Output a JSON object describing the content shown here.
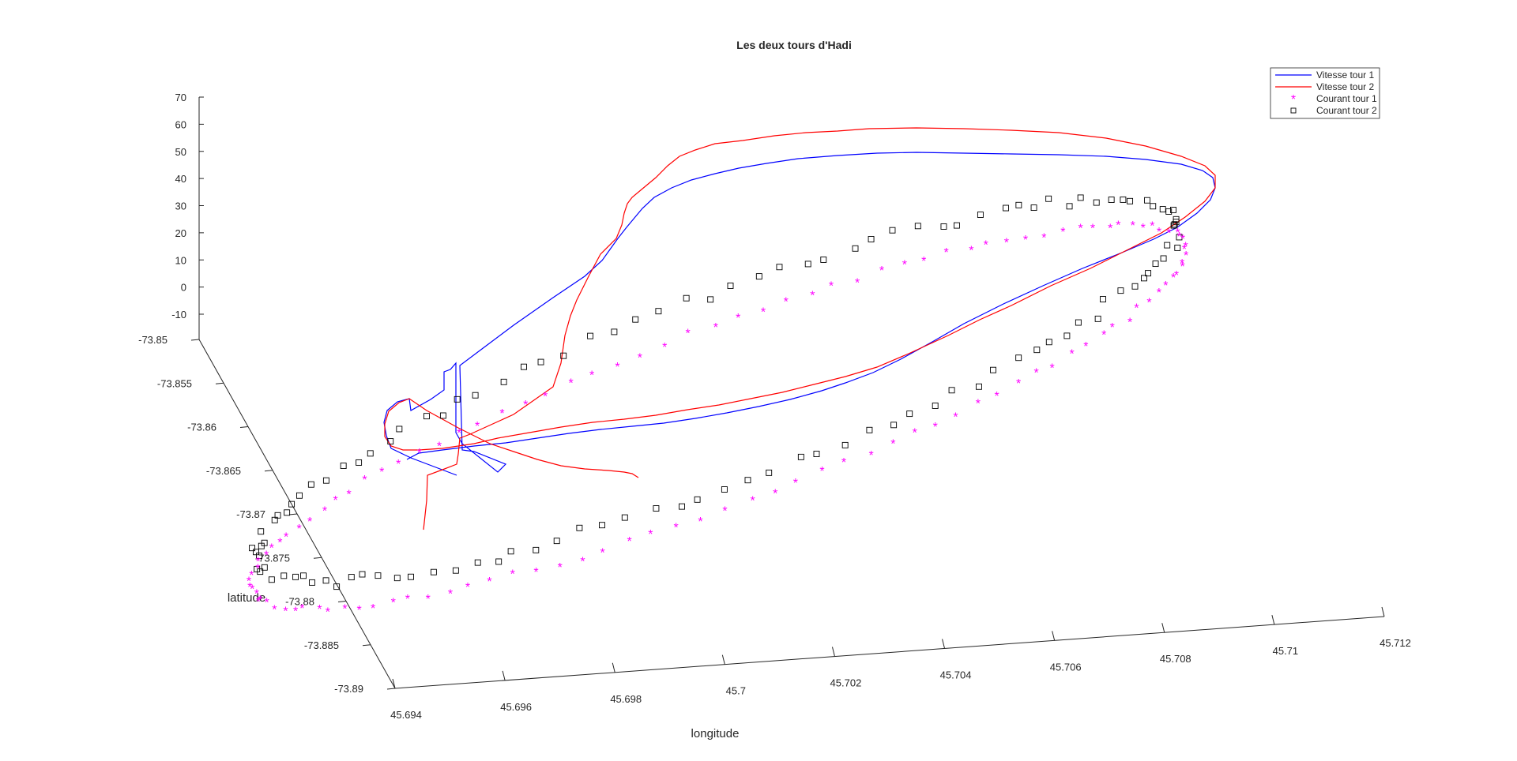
{
  "chart_data": {
    "type": "scatter",
    "projection": "3d",
    "title": "Les deux tours d'Hadi",
    "xlabel": "longitude",
    "ylabel": "latitude",
    "zlabel": "",
    "xlim": [
      45.694,
      45.712
    ],
    "ylim": [
      -73.89,
      -73.85
    ],
    "zlim": [
      -10,
      70
    ],
    "x_ticks": [
      "45.694",
      "45.696",
      "45.698",
      "45.7",
      "45.702",
      "45.704",
      "45.706",
      "45.708",
      "45.71",
      "45.712"
    ],
    "y_ticks": [
      "-73.89",
      "-73.885",
      "-73.88",
      "-73.875",
      "-73.87",
      "-73.865",
      "-73.86",
      "-73.855",
      "-73.85"
    ],
    "z_ticks": [
      "70",
      "60",
      "50",
      "40",
      "30",
      "20",
      "10",
      "0",
      "-10"
    ],
    "grid": false,
    "legend_position": "top-right",
    "series": [
      {
        "name": "Vitesse tour 1",
        "style": "line",
        "color": "#0000ff"
      },
      {
        "name": "Vitesse tour 2",
        "style": "line",
        "color": "#ff0000"
      },
      {
        "name": "Courant tour 1",
        "style": "asterisk",
        "color": "#ff00ff"
      },
      {
        "name": "Courant tour 2",
        "style": "square",
        "color": "#000000"
      }
    ]
  }
}
